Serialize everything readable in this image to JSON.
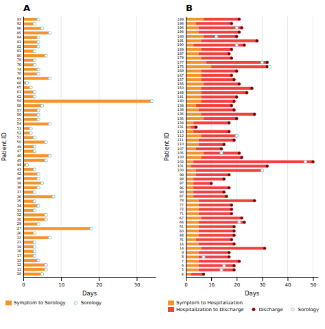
{
  "chart_data": [
    {
      "type": "bar",
      "orientation": "horizontal",
      "title": "A",
      "xlabel": "Days",
      "ylabel": "Patient ID",
      "categories": [
        "93",
        "92",
        "86",
        "85",
        "84",
        "83",
        "82",
        "81",
        "80",
        "79",
        "76",
        "74",
        "70",
        "69",
        "68",
        "65",
        "63",
        "62",
        "59",
        "58",
        "57",
        "56",
        "55",
        "54",
        "53",
        "52",
        "51",
        "50",
        "49",
        "47",
        "46",
        "45",
        "44",
        "43",
        "42",
        "40",
        "39",
        "38",
        "37",
        "36",
        "35",
        "34",
        "33",
        "32",
        "30",
        "29",
        "27",
        "26",
        "22",
        "21",
        "19",
        "18",
        "17",
        "13",
        "12",
        "11",
        "10"
      ],
      "series": [
        {
          "name": "Symptom to Sorology",
          "type": "bar",
          "color": "#F5922A",
          "values": [
            4,
            3,
            5,
            7,
            4,
            4,
            4,
            3,
            6,
            3,
            3,
            4,
            4,
            7,
            1,
            2,
            3,
            3,
            34,
            5,
            4,
            4,
            4,
            7,
            2,
            2,
            3,
            6,
            3,
            3,
            7,
            6,
            1,
            3,
            4,
            4,
            5,
            4,
            3,
            8,
            3,
            4,
            3,
            6,
            6,
            4,
            18,
            3,
            7,
            3,
            3,
            3,
            3,
            4,
            6,
            6,
            5
          ]
        },
        {
          "name": "Sorology",
          "type": "scatter",
          "marker": "open-circle",
          "color": "#7CBFCA",
          "values": [
            4,
            3,
            5,
            7,
            4,
            4,
            4,
            3,
            6,
            3,
            3,
            4,
            4,
            7,
            1,
            2,
            3,
            3,
            34,
            5,
            4,
            4,
            4,
            7,
            2,
            2,
            3,
            6,
            3,
            3,
            7,
            6,
            1,
            3,
            4,
            4,
            5,
            4,
            3,
            8,
            3,
            4,
            3,
            6,
            6,
            4,
            18,
            3,
            7,
            3,
            3,
            3,
            3,
            4,
            6,
            6,
            5
          ]
        }
      ],
      "xlim": [
        0,
        35
      ],
      "xticks": [
        0,
        10,
        20,
        30
      ],
      "grid": true,
      "legend": "bottom"
    },
    {
      "type": "bar",
      "orientation": "horizontal",
      "stacked": true,
      "title": "B",
      "xlabel": "Days",
      "ylabel": "Patient ID",
      "categories": [
        "199",
        "198",
        "196",
        "194",
        "193",
        "191",
        "190",
        "189",
        "187",
        "179",
        "177",
        "175",
        "169",
        "167",
        "157",
        "156",
        "150",
        "148",
        "141",
        "140",
        "139",
        "138",
        "136",
        "135",
        "134",
        "131",
        "113",
        "112",
        "111",
        "110",
        "107",
        "105",
        "103",
        "102",
        "101",
        "100",
        "99",
        "98",
        "97",
        "96",
        "90",
        "87",
        "78",
        "77",
        "72",
        "71",
        "67",
        "66",
        "61",
        "60",
        "48",
        "31",
        "16",
        "14",
        "9",
        "8",
        "7",
        "6",
        "5",
        "4"
      ],
      "series": [
        {
          "name": "Symptom to Hospitalization",
          "type": "bar",
          "color": "#F5922A",
          "values": [
            7,
            4,
            5,
            5,
            7,
            6,
            3,
            6,
            5,
            6,
            8,
            10,
            6,
            6,
            6,
            7,
            6,
            6,
            6,
            6,
            4,
            5,
            6,
            7,
            3,
            2,
            3,
            6,
            5,
            5,
            4,
            7,
            6,
            3,
            2,
            4,
            4,
            3,
            3,
            3,
            3,
            3,
            5,
            5,
            5,
            5,
            6,
            5,
            5,
            5,
            5,
            4,
            5,
            6,
            5,
            5,
            5,
            5,
            5,
            2
          ]
        },
        {
          "name": "Hospitalization to Discharge",
          "type": "bar",
          "color": "#F04040",
          "values": [
            14,
            14,
            17,
            16,
            13,
            22,
            20,
            12,
            12,
            12,
            24,
            22,
            14,
            12,
            13,
            14,
            20,
            18,
            14,
            13,
            14,
            14,
            21,
            13,
            14,
            2,
            14,
            14,
            14,
            10,
            10,
            14,
            16,
            47,
            30,
            26,
            13,
            12,
            7,
            14,
            12,
            13,
            22,
            13,
            13,
            13,
            16,
            18,
            14,
            14,
            14,
            14,
            14,
            25,
            12,
            12,
            16,
            14,
            14,
            5
          ]
        },
        {
          "name": "Discharge",
          "type": "scatter",
          "marker": "circle",
          "color": "#7A0000",
          "values": [
            21,
            18,
            22,
            21,
            20,
            28,
            23,
            18,
            17,
            18,
            32,
            32,
            20,
            18,
            19,
            21,
            26,
            24,
            20,
            19,
            18,
            19,
            27,
            20,
            17,
            4,
            17,
            20,
            19,
            15,
            14,
            21,
            22,
            50,
            32,
            30,
            17,
            15,
            10,
            17,
            15,
            16,
            27,
            18,
            18,
            18,
            22,
            23,
            19,
            19,
            19,
            18,
            19,
            31,
            17,
            17,
            21,
            19,
            19,
            7
          ]
        },
        {
          "name": "Sorology",
          "type": "scatter",
          "marker": "open-circle",
          "color": "#7CBFCA",
          "values": [
            null,
            null,
            20,
            null,
            12,
            null,
            20,
            null,
            null,
            null,
            30,
            33,
            null,
            null,
            null,
            null,
            null,
            null,
            null,
            null,
            null,
            null,
            null,
            null,
            null,
            null,
            null,
            20,
            null,
            null,
            null,
            14,
            null,
            47,
            null,
            30,
            null,
            null,
            null,
            null,
            null,
            null,
            null,
            null,
            null,
            null,
            null,
            21,
            null,
            null,
            null,
            null,
            null,
            null,
            null,
            7,
            null,
            15,
            14,
            null
          ]
        }
      ],
      "xlim": [
        0,
        52
      ],
      "xticks": [
        0,
        10,
        20,
        30,
        40,
        50
      ],
      "grid": true,
      "legend": "bottom"
    }
  ]
}
